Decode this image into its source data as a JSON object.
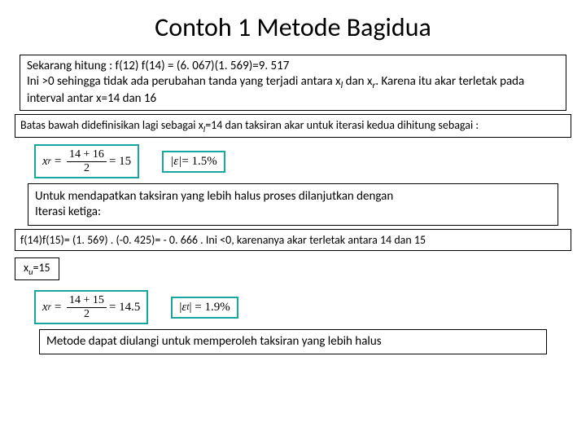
{
  "title": "Contoh 1 Metode Bagidua",
  "box1": {
    "line1": "Sekarang hitung : f(12) f(14) = (6. 067)(1. 569)=9. 517",
    "line2_a": "Ini >0 sehingga tidak ada perubahan tanda yang terjadi antara x",
    "line2_b": " dan x",
    "line2_c": ". Karena itu akar terletak pada interval antar x=14 dan 16",
    "sub_l": "l",
    "sub_r": "r"
  },
  "box2": {
    "text_a": "Batas bawah didefinisikan lagi sebagai x",
    "sub_l": "l",
    "text_b": "=14 dan taksiran akar untuk iterasi kedua dihitung sebagai :"
  },
  "formula1": {
    "lhs_var": "x",
    "lhs_sub": "r",
    "num": "14 + 16",
    "den": "2",
    "rhs": "= 15",
    "err_lhs": "|ε|",
    "err_rhs": " = 1.5%"
  },
  "box3": {
    "line1": "Untuk mendapatkan taksiran yang lebih halus proses dilanjutkan dengan",
    "line2": "Iterasi ketiga:"
  },
  "box4": {
    "text": "f(14)f(15)= (1. 569) . (-0. 425)= - 0. 666 . Ini <0,  karenanya akar terletak antara 14 dan 15"
  },
  "box5": {
    "text_a": "x",
    "sub_u": "u",
    "text_b": "=15"
  },
  "formula2": {
    "lhs_var": "x",
    "lhs_sub": "r",
    "num": "14 + 15",
    "den": "2",
    "rhs": "= 14.5",
    "err_lhs_var": "ε",
    "err_lhs_sub": "t",
    "err_rhs": "| = 1.9%"
  },
  "box6": {
    "text": "Metode dapat diulangi untuk memperoleh taksiran yang lebih halus"
  },
  "colors": {
    "formula_border": "#1aa6a0",
    "text": "#000000",
    "background": "#ffffff"
  }
}
